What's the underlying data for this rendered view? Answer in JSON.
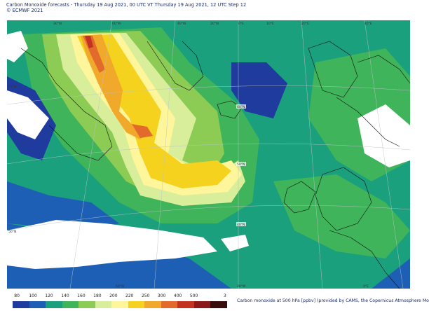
{
  "header": {
    "line1": "Carbon Monoxide forecasts - Thursday 19 Aug 2021, 00 UTC VT Thursday 19 Aug 2021, 12 UTC Step 12",
    "line2": "© ECMWF 2021"
  },
  "colorbar": {
    "labels": [
      "80",
      "100",
      "120",
      "140",
      "160",
      "180",
      "200",
      "220",
      "250",
      "300",
      "400",
      "500",
      "3"
    ],
    "colors": [
      "#1f3b9e",
      "#1d5fb4",
      "#1aa07d",
      "#3fb45a",
      "#8ccc55",
      "#d9ee9a",
      "#fff59a",
      "#f5d21e",
      "#f0a92a",
      "#e26a2a",
      "#c23321",
      "#8a1a1a",
      "#3a0d0d"
    ]
  },
  "caption": "Carbon monoxide at 500 hPa [ppbv] (provided by CAMS, the Copernicus Atmosphere Mo",
  "grid_labels": {
    "top": [
      "30°W",
      "60°W",
      "40°W",
      "20°W",
      "0°E",
      "10°E",
      "20°E",
      "40°E"
    ],
    "left": [
      "60°N",
      "50°N"
    ],
    "bottom": [
      "60°W",
      "20°W",
      "0°E"
    ],
    "inner": [
      "60°N",
      "50°N",
      "40°N"
    ]
  }
}
